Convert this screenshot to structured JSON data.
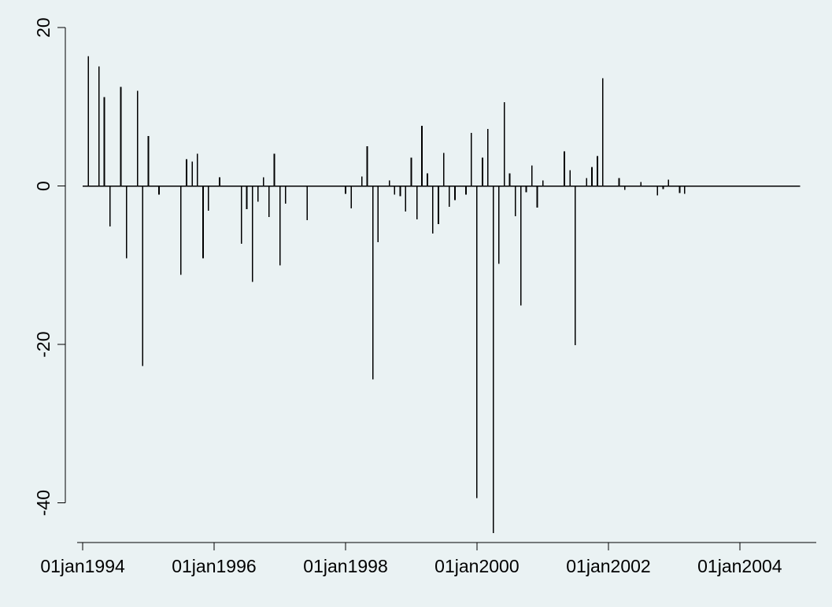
{
  "chart_data": {
    "type": "spike",
    "title": "",
    "xlabel": "",
    "ylabel": "",
    "x_axis": {
      "ticks": [
        "01jan1994",
        "01jan1996",
        "01jan1998",
        "01jan2000",
        "01jan2002",
        "01jan2004"
      ],
      "range": [
        "1993-12-01",
        "2005-03-01"
      ]
    },
    "y_axis": {
      "ticks": [
        20,
        0,
        -20,
        -40
      ],
      "range": [
        -45,
        21
      ]
    },
    "grid": false,
    "legend": "none",
    "colors": {
      "background": "#eaf2f3",
      "plot_area": "#eaf2f3",
      "line": "#000000"
    },
    "series": [
      {
        "x": [
          "1994-01-01",
          "1994-02-01",
          "1994-03-01",
          "1994-04-01",
          "1994-05-01",
          "1994-06-01",
          "1994-07-01",
          "1994-08-01",
          "1994-09-01",
          "1994-10-01",
          "1994-11-01",
          "1994-12-01",
          "1995-01-01",
          "1995-02-01",
          "1995-03-01",
          "1995-04-01",
          "1995-05-01",
          "1995-06-01",
          "1995-07-01",
          "1995-08-01",
          "1995-09-01",
          "1995-10-01",
          "1995-11-01",
          "1995-12-01",
          "1996-01-01",
          "1996-02-01",
          "1996-03-01",
          "1996-04-01",
          "1996-05-01",
          "1996-06-01",
          "1996-07-01",
          "1996-08-01",
          "1996-09-01",
          "1996-10-01",
          "1996-11-01",
          "1996-12-01",
          "1997-01-01",
          "1997-02-01",
          "1997-03-01",
          "1997-04-01",
          "1997-05-01",
          "1997-06-01",
          "1997-07-01",
          "1997-08-01",
          "1997-09-01",
          "1997-10-01",
          "1997-11-01",
          "1997-12-01",
          "1998-01-01",
          "1998-02-01",
          "1998-03-01",
          "1998-04-01",
          "1998-05-01",
          "1998-06-01",
          "1998-07-01",
          "1998-08-01",
          "1998-09-01",
          "1998-10-01",
          "1998-11-01",
          "1998-12-01",
          "1999-01-01",
          "1999-02-01",
          "1999-03-01",
          "1999-04-01",
          "1999-05-01",
          "1999-06-01",
          "1999-07-01",
          "1999-08-01",
          "1999-09-01",
          "1999-10-01",
          "1999-11-01",
          "1999-12-01",
          "2000-01-01",
          "2000-02-01",
          "2000-03-01",
          "2000-04-01",
          "2000-05-01",
          "2000-06-01",
          "2000-07-01",
          "2000-08-01",
          "2000-09-01",
          "2000-10-01",
          "2000-11-01",
          "2000-12-01",
          "2001-01-01",
          "2001-02-01",
          "2001-03-01",
          "2001-04-01",
          "2001-05-01",
          "2001-06-01",
          "2001-07-01",
          "2001-08-01",
          "2001-09-01",
          "2001-10-01",
          "2001-11-01",
          "2001-12-01",
          "2002-01-01",
          "2002-02-01",
          "2002-03-01",
          "2002-04-01",
          "2002-05-01",
          "2002-06-01",
          "2002-07-01",
          "2002-08-01",
          "2002-09-01",
          "2002-10-01",
          "2002-11-01",
          "2002-12-01",
          "2003-01-01",
          "2003-02-01",
          "2003-03-01",
          "2003-04-01",
          "2003-05-01",
          "2003-06-01",
          "2003-07-01",
          "2003-08-01",
          "2003-09-01",
          "2003-10-01",
          "2003-11-01",
          "2003-12-01",
          "2004-01-01",
          "2004-02-01",
          "2004-03-01",
          "2004-04-01",
          "2004-05-01",
          "2004-06-01",
          "2004-07-01",
          "2004-08-01",
          "2004-09-01",
          "2004-10-01",
          "2004-11-01",
          "2004-12-01"
        ],
        "y": [
          0,
          16.4,
          0,
          15.1,
          11.2,
          -5.1,
          0,
          12.5,
          -9.1,
          0,
          12.0,
          -22.7,
          6.3,
          0,
          -1.1,
          0,
          0,
          0,
          -11.2,
          3.4,
          3.1,
          4.1,
          -9.1,
          -3.1,
          0,
          1.1,
          0,
          0,
          0,
          -7.3,
          -2.9,
          -12.1,
          -2.0,
          1.1,
          -3.9,
          4.1,
          -10.0,
          -2.2,
          0,
          0,
          0,
          -4.3,
          0,
          0,
          0,
          0,
          0,
          0,
          -1.0,
          -2.8,
          0,
          1.2,
          5.0,
          -24.4,
          -7.1,
          0,
          0.7,
          -1.1,
          -1.3,
          -3.2,
          3.6,
          -4.2,
          7.6,
          1.6,
          -6.0,
          -4.8,
          4.2,
          -2.6,
          -1.8,
          0,
          -1.1,
          6.7,
          -39.4,
          3.6,
          7.2,
          -43.8,
          -9.8,
          10.6,
          1.6,
          -3.8,
          -15.1,
          -0.8,
          2.6,
          -2.7,
          0.7,
          0,
          0,
          0,
          4.4,
          2.0,
          -20.1,
          0,
          1.0,
          2.4,
          3.8,
          13.6,
          0,
          0,
          1.0,
          -0.5,
          0,
          0,
          0.5,
          0,
          0,
          -1.2,
          -0.4,
          0.8,
          0,
          -0.9,
          -1.0,
          0,
          0,
          0,
          0,
          0,
          0,
          0,
          0,
          0,
          0,
          0,
          0,
          0,
          0,
          0,
          0,
          0,
          0,
          0,
          0,
          0
        ]
      }
    ]
  }
}
